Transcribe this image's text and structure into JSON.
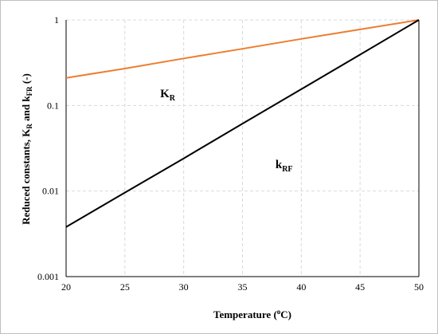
{
  "chart_data": {
    "type": "line",
    "xlabel": "Temperature (oC)",
    "ylabel": "Reduced constants, KR and kFR (-)",
    "x_ticks": [
      "20",
      "25",
      "30",
      "35",
      "40",
      "45",
      "50"
    ],
    "y_ticks": [
      "0.001",
      "0.01",
      "0.1",
      "1"
    ],
    "xlim": [
      20,
      50
    ],
    "ylim": [
      0.001,
      1
    ],
    "y_scale": "log",
    "grid": true,
    "series": [
      {
        "name": "KR",
        "color": "#ED7D31",
        "x": [
          20,
          25,
          30,
          35,
          40,
          45,
          50
        ],
        "y": [
          0.21,
          0.27,
          0.355,
          0.46,
          0.6,
          0.775,
          1.0
        ]
      },
      {
        "name": "kRF",
        "color": "#000000",
        "x": [
          20,
          25,
          30,
          35,
          40,
          45,
          50
        ],
        "y": [
          0.0038,
          0.0096,
          0.0241,
          0.0613,
          0.155,
          0.393,
          1.0
        ]
      }
    ]
  }
}
